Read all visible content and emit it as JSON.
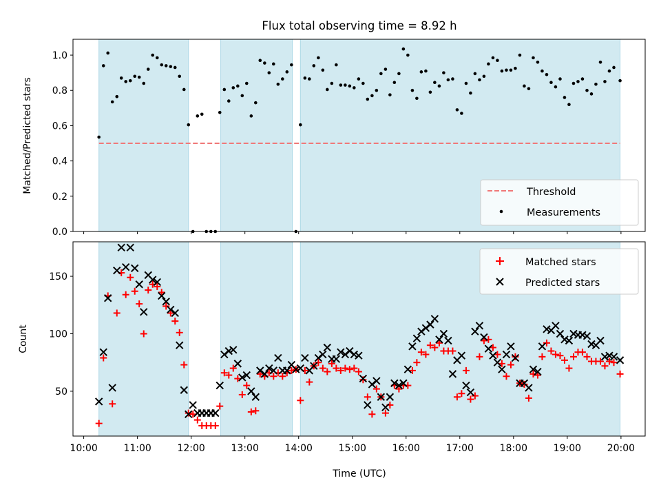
{
  "figure_title": "Flux total observing time = 8.92 h",
  "colors": {
    "shade": "#add8e6",
    "threshold": "#f07878",
    "measurement": "#000000",
    "matched": "#ff0000",
    "predicted": "#000000"
  },
  "chart_data": [
    {
      "type": "scatter",
      "ylabel": "Matched/Predicted stars",
      "xlim": [
        9.8,
        20.45
      ],
      "ylim": [
        0,
        1.09
      ],
      "yticks": [
        "0.0",
        "0.2",
        "0.4",
        "0.6",
        "0.8",
        "1.0"
      ],
      "grid": false,
      "legend_position": "lower-right",
      "shaded_intervals": [
        [
          10.283,
          11.95
        ],
        [
          12.55,
          13.883
        ],
        [
          14.033,
          19.983
        ]
      ],
      "threshold": {
        "name": "Threshold",
        "value": 0.5,
        "style": "dashed"
      },
      "series": [
        {
          "name": "Measurements",
          "marker": "dot",
          "x": [
            10.283,
            10.367,
            10.45,
            10.533,
            10.617,
            10.7,
            10.783,
            10.867,
            10.95,
            11.033,
            11.117,
            11.2,
            11.283,
            11.367,
            11.45,
            11.533,
            11.617,
            11.7,
            11.783,
            11.867,
            11.95,
            12.033,
            12.117,
            12.2,
            12.283,
            12.367,
            12.45,
            12.533,
            12.617,
            12.7,
            12.783,
            12.867,
            12.95,
            13.033,
            13.117,
            13.2,
            13.283,
            13.367,
            13.45,
            13.533,
            13.617,
            13.7,
            13.783,
            13.867,
            13.95,
            14.033,
            14.117,
            14.2,
            14.283,
            14.367,
            14.45,
            14.533,
            14.617,
            14.7,
            14.783,
            14.867,
            14.95,
            15.033,
            15.117,
            15.2,
            15.283,
            15.367,
            15.45,
            15.533,
            15.617,
            15.7,
            15.783,
            15.867,
            15.95,
            16.033,
            16.117,
            16.2,
            16.283,
            16.367,
            16.45,
            16.533,
            16.617,
            16.7,
            16.783,
            16.867,
            16.95,
            17.033,
            17.117,
            17.2,
            17.283,
            17.367,
            17.45,
            17.533,
            17.617,
            17.7,
            17.783,
            17.867,
            17.95,
            18.033,
            18.117,
            18.2,
            18.283,
            18.367,
            18.45,
            18.533,
            18.617,
            18.7,
            18.783,
            18.867,
            18.95,
            19.033,
            19.117,
            19.2,
            19.283,
            19.367,
            19.45,
            19.533,
            19.617,
            19.7,
            19.783,
            19.867,
            19.983
          ],
          "y": [
            0.535,
            0.94,
            1.012,
            0.735,
            0.765,
            0.87,
            0.85,
            0.855,
            0.88,
            0.875,
            0.84,
            0.92,
            1.0,
            0.985,
            0.945,
            0.94,
            0.935,
            0.93,
            0.88,
            0.805,
            0.605,
            0.0,
            0.655,
            0.665,
            0.0,
            0.0,
            0.0,
            0.675,
            0.805,
            0.74,
            0.815,
            0.825,
            0.77,
            0.84,
            0.655,
            0.73,
            0.97,
            0.955,
            0.9,
            0.95,
            0.835,
            0.865,
            0.905,
            0.945,
            0.0,
            0.605,
            0.87,
            0.865,
            0.94,
            0.985,
            0.915,
            0.805,
            0.84,
            0.945,
            0.83,
            0.83,
            0.825,
            0.815,
            0.865,
            0.84,
            0.75,
            0.77,
            0.8,
            0.895,
            0.92,
            0.775,
            0.845,
            0.895,
            1.035,
            1.0,
            0.8,
            0.755,
            0.905,
            0.91,
            0.79,
            0.845,
            0.825,
            0.9,
            0.86,
            0.865,
            0.69,
            0.67,
            0.84,
            0.785,
            0.895,
            0.86,
            0.88,
            0.95,
            0.985,
            0.97,
            0.91,
            0.915,
            0.915,
            0.925,
            1.0,
            0.825,
            0.81,
            0.985,
            0.96,
            0.91,
            0.89,
            0.845,
            0.82,
            0.865,
            0.76,
            0.72,
            0.84,
            0.85,
            0.865,
            0.8,
            0.78,
            0.835,
            0.96,
            0.85,
            0.91,
            0.93,
            0.855
          ]
        }
      ]
    },
    {
      "type": "scatter",
      "ylabel": "Count",
      "xlabel": "Time (UTC)",
      "xlim": [
        9.8,
        20.45
      ],
      "ylim": [
        11,
        180
      ],
      "yticks": [
        "50",
        "100",
        "150"
      ],
      "xticks": [
        "10:00",
        "11:00",
        "12:00",
        "13:00",
        "14:00",
        "15:00",
        "16:00",
        "17:00",
        "18:00",
        "19:00",
        "20:00"
      ],
      "grid": false,
      "legend_position": "upper-right",
      "shaded_intervals": [
        [
          10.283,
          11.95
        ],
        [
          12.55,
          13.883
        ],
        [
          14.033,
          19.983
        ]
      ],
      "series": [
        {
          "name": "Matched stars",
          "marker": "plus",
          "x": [
            10.283,
            10.367,
            10.45,
            10.533,
            10.617,
            10.7,
            10.783,
            10.867,
            10.95,
            11.033,
            11.117,
            11.2,
            11.283,
            11.367,
            11.45,
            11.533,
            11.617,
            11.7,
            11.783,
            11.867,
            11.95,
            12.033,
            12.117,
            12.2,
            12.283,
            12.367,
            12.45,
            12.533,
            12.617,
            12.7,
            12.783,
            12.867,
            12.95,
            13.033,
            13.117,
            13.2,
            13.283,
            13.367,
            13.45,
            13.533,
            13.617,
            13.7,
            13.783,
            13.867,
            13.95,
            14.033,
            14.117,
            14.2,
            14.283,
            14.367,
            14.45,
            14.533,
            14.617,
            14.7,
            14.783,
            14.867,
            14.95,
            15.033,
            15.117,
            15.2,
            15.283,
            15.367,
            15.45,
            15.533,
            15.617,
            15.7,
            15.783,
            15.867,
            15.95,
            16.033,
            16.117,
            16.2,
            16.283,
            16.367,
            16.45,
            16.533,
            16.617,
            16.7,
            16.783,
            16.867,
            16.95,
            17.033,
            17.117,
            17.2,
            17.283,
            17.367,
            17.45,
            17.533,
            17.617,
            17.7,
            17.783,
            17.867,
            17.95,
            18.033,
            18.117,
            18.2,
            18.283,
            18.367,
            18.45,
            18.533,
            18.617,
            18.7,
            18.783,
            18.867,
            18.95,
            19.033,
            19.117,
            19.2,
            19.283,
            19.367,
            19.45,
            19.533,
            19.617,
            19.7,
            19.783,
            19.867,
            19.983
          ],
          "y": [
            22,
            79,
            133,
            39,
            118,
            153,
            134,
            149,
            137,
            126,
            100,
            138,
            143,
            141,
            136,
            124,
            118,
            111,
            101,
            73,
            31,
            30,
            25,
            20,
            20,
            20,
            20,
            37,
            66,
            64,
            70,
            61,
            47,
            55,
            32,
            33,
            65,
            63,
            66,
            63,
            66,
            63,
            66,
            68,
            69,
            42,
            68,
            58,
            72,
            75,
            70,
            67,
            74,
            70,
            68,
            70,
            69,
            70,
            67,
            60,
            45,
            30,
            52,
            45,
            31,
            38,
            55,
            52,
            55,
            55,
            68,
            75,
            84,
            82,
            90,
            88,
            92,
            85,
            85,
            85,
            45,
            48,
            68,
            43,
            46,
            80,
            94,
            95,
            88,
            82,
            74,
            63,
            73,
            80,
            57,
            56,
            44,
            65,
            64,
            80,
            92,
            85,
            82,
            81,
            77,
            70,
            80,
            84,
            84,
            80,
            76,
            76,
            76,
            72,
            76,
            75,
            65
          ]
        },
        {
          "name": "Predicted stars",
          "marker": "x",
          "x": [
            10.283,
            10.367,
            10.45,
            10.533,
            10.617,
            10.7,
            10.783,
            10.867,
            10.95,
            11.033,
            11.117,
            11.2,
            11.283,
            11.367,
            11.45,
            11.533,
            11.617,
            11.7,
            11.783,
            11.867,
            11.95,
            12.033,
            12.117,
            12.2,
            12.283,
            12.367,
            12.45,
            12.533,
            12.617,
            12.7,
            12.783,
            12.867,
            12.95,
            13.033,
            13.117,
            13.2,
            13.283,
            13.367,
            13.45,
            13.533,
            13.617,
            13.7,
            13.783,
            13.867,
            13.95,
            14.033,
            14.117,
            14.2,
            14.283,
            14.367,
            14.45,
            14.533,
            14.617,
            14.7,
            14.783,
            14.867,
            14.95,
            15.033,
            15.117,
            15.2,
            15.283,
            15.367,
            15.45,
            15.533,
            15.617,
            15.7,
            15.783,
            15.867,
            15.95,
            16.033,
            16.117,
            16.2,
            16.283,
            16.367,
            16.45,
            16.533,
            16.617,
            16.7,
            16.783,
            16.867,
            16.95,
            17.033,
            17.117,
            17.2,
            17.283,
            17.367,
            17.45,
            17.533,
            17.617,
            17.7,
            17.783,
            17.867,
            17.95,
            18.033,
            18.117,
            18.2,
            18.283,
            18.367,
            18.45,
            18.533,
            18.617,
            18.7,
            18.783,
            18.867,
            18.95,
            19.033,
            19.117,
            19.2,
            19.283,
            19.367,
            19.45,
            19.533,
            19.617,
            19.7,
            19.783,
            19.867,
            19.983
          ],
          "y": [
            41,
            84,
            131,
            53,
            155,
            175,
            158,
            175,
            157,
            143,
            119,
            151,
            147,
            145,
            133,
            128,
            121,
            118,
            90,
            51,
            30,
            38,
            31,
            31,
            31,
            31,
            31,
            55,
            82,
            85,
            86,
            74,
            62,
            64,
            50,
            45,
            68,
            65,
            70,
            68,
            79,
            68,
            68,
            73,
            69,
            70,
            79,
            68,
            72,
            79,
            82,
            88,
            78,
            78,
            84,
            82,
            85,
            82,
            81,
            61,
            38,
            56,
            59,
            45,
            36,
            45,
            57,
            55,
            57,
            69,
            89,
            96,
            102,
            105,
            108,
            113,
            95,
            100,
            94,
            65,
            77,
            81,
            55,
            49,
            102,
            107,
            97,
            87,
            81,
            75,
            69,
            82,
            89,
            79,
            57,
            57,
            53,
            69,
            67,
            89,
            104,
            103,
            107,
            100,
            95,
            94,
            100,
            99,
            99,
            98,
            91,
            90,
            94,
            80,
            81,
            80,
            77
          ]
        }
      ]
    }
  ]
}
